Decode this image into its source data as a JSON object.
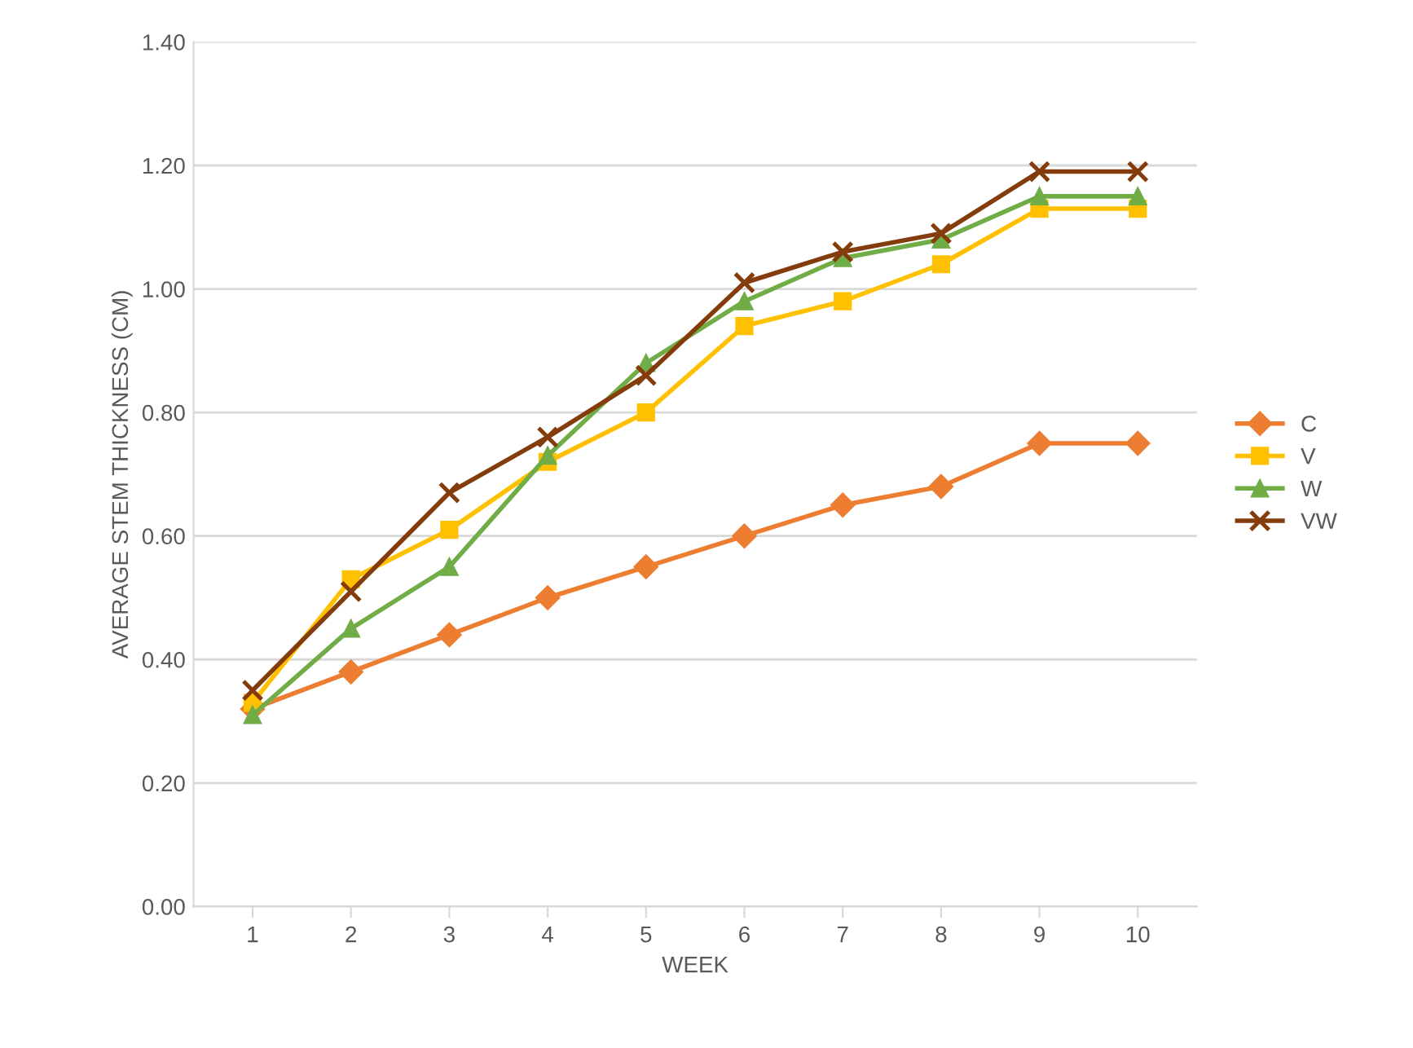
{
  "chart_data": {
    "type": "line",
    "xlabel": "WEEK",
    "ylabel": "AVERAGE STEM THICKNESS (CM)",
    "categories": [
      "1",
      "2",
      "3",
      "4",
      "5",
      "6",
      "7",
      "8",
      "9",
      "10"
    ],
    "series": [
      {
        "name": "C",
        "color": "#ed7d31",
        "marker": "diamond",
        "values": [
          0.32,
          0.38,
          0.44,
          0.5,
          0.55,
          0.6,
          0.65,
          0.68,
          0.75,
          0.75
        ]
      },
      {
        "name": "V",
        "color": "#ffc000",
        "marker": "square",
        "values": [
          0.33,
          0.53,
          0.61,
          0.72,
          0.8,
          0.94,
          0.98,
          1.04,
          1.13,
          1.13
        ]
      },
      {
        "name": "W",
        "color": "#70ad47",
        "marker": "triangle",
        "values": [
          0.31,
          0.45,
          0.55,
          0.73,
          0.88,
          0.98,
          1.05,
          1.08,
          1.15,
          1.15
        ]
      },
      {
        "name": "VW",
        "color": "#843c0c",
        "marker": "cross",
        "values": [
          0.35,
          0.51,
          0.67,
          0.76,
          0.86,
          1.01,
          1.06,
          1.09,
          1.19,
          1.19
        ]
      }
    ],
    "ylim": [
      0,
      1.4
    ],
    "yticks": [
      {
        "value": 0,
        "label": "0.00"
      },
      {
        "value": 0.2,
        "label": "0.20"
      },
      {
        "value": 0.4,
        "label": "0.40"
      },
      {
        "value": 0.6,
        "label": "0.60"
      },
      {
        "value": 0.8,
        "label": "0.80"
      },
      {
        "value": 1.0,
        "label": "1.00"
      },
      {
        "value": 1.2,
        "label": "1.20"
      },
      {
        "value": 1.4,
        "label": "1.40"
      }
    ],
    "grid": "y",
    "legend": "right",
    "line_style": "solid"
  }
}
